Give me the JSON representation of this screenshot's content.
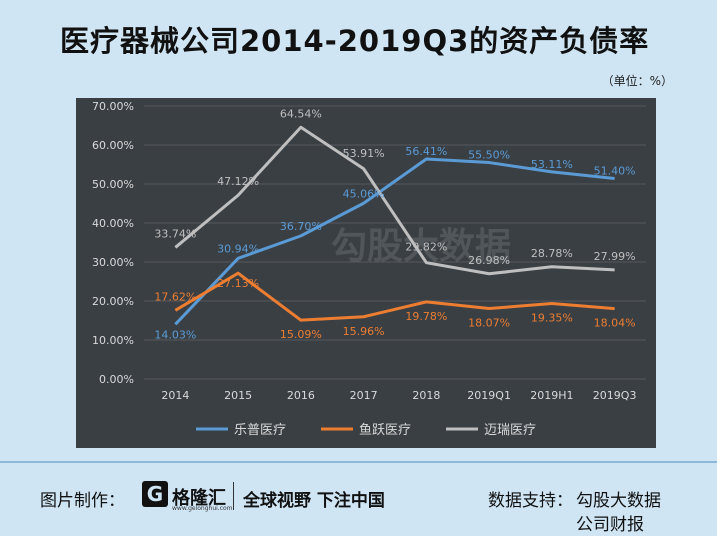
{
  "title": "医疗器械公司2014-2019Q3的资产负债率",
  "unit": "（单位：%）",
  "footer": {
    "made_by_label": "图片制作：",
    "logo_mark": "G",
    "logo_name": "格隆汇",
    "logo_url": "www.gelonghui.com",
    "slogan": "全球视野 下注中国",
    "source_label": "数据支持：",
    "source_1": "勾股大数据",
    "source_2": "公司财报"
  },
  "watermark": "勾股大数据",
  "colors": {
    "plot_bg": "#3a3f44",
    "series_1": "#5b9bd5",
    "series_2": "#ed7d31",
    "series_3": "#bfbfbf",
    "tick_text": "#d9d9d9"
  },
  "chart_data": {
    "type": "line",
    "categories": [
      "2014",
      "2015",
      "2016",
      "2017",
      "2018",
      "2019Q1",
      "2019H1",
      "2019Q3"
    ],
    "ylim": [
      0,
      70
    ],
    "yticks": [
      "0.00%",
      "10.00%",
      "20.00%",
      "30.00%",
      "40.00%",
      "50.00%",
      "60.00%",
      "70.00%"
    ],
    "grid": true,
    "legend_position": "bottom",
    "series": [
      {
        "name": "乐普医疗",
        "values": [
          14.03,
          30.94,
          36.7,
          45.06,
          56.41,
          55.5,
          53.11,
          51.4
        ],
        "labels": [
          "14.03%",
          "30.94%",
          "36.70%",
          "45.06%",
          "56.41%",
          "55.50%",
          "53.11%",
          "51.40%"
        ]
      },
      {
        "name": "鱼跃医疗",
        "values": [
          17.62,
          27.13,
          15.09,
          15.96,
          19.78,
          18.07,
          19.35,
          18.04
        ],
        "labels": [
          "17.62%",
          "27.13%",
          "15.09%",
          "15.96%",
          "19.78%",
          "18.07%",
          "19.35%",
          "18.04%"
        ]
      },
      {
        "name": "迈瑞医疗",
        "values": [
          33.74,
          47.12,
          64.54,
          53.91,
          29.82,
          26.98,
          28.78,
          27.99
        ],
        "labels": [
          "33.74%",
          "47.12%",
          "64.54%",
          "53.91%",
          "29.82%",
          "26.98%",
          "28.78%",
          "27.99%"
        ]
      }
    ]
  }
}
